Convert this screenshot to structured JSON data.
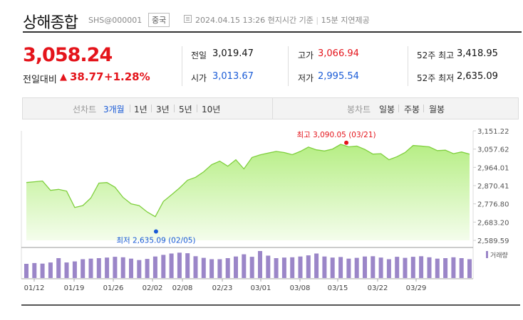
{
  "header": {
    "title": "상해종합",
    "code": "SHS@000001",
    "country": "중국",
    "datetime": "2024.04.15 13:26 현지시간 기준",
    "delay": "15분 지연제공"
  },
  "quote": {
    "price": "3,058.24",
    "change_label": "전일대비",
    "change_arrow": "▲",
    "change_value": "38.77",
    "change_pct": "+1.28%"
  },
  "stats": {
    "prev_label": "전일",
    "prev_value": "3,019.47",
    "open_label": "시가",
    "open_value": "3,013.67",
    "high_label": "고가",
    "high_value": "3,066.94",
    "low_label": "저가",
    "low_value": "2,995.54",
    "w52h_label": "52주 최고",
    "w52h_value": "3,418.95",
    "w52l_label": "52주 최저",
    "w52l_value": "2,635.09"
  },
  "toolbar": {
    "line_label": "선차트",
    "periods": [
      "3개월",
      "1년",
      "3년",
      "5년",
      "10년"
    ],
    "active_period": "3개월",
    "candle_label": "봉차트",
    "candles": [
      "일봉",
      "주봉",
      "월봉"
    ]
  },
  "chart_data": {
    "type": "area",
    "x_ticks": [
      "01/12",
      "01/19",
      "01/26",
      "02/02",
      "02/08",
      "02/23",
      "03/01",
      "03/08",
      "03/15",
      "03/22",
      "03/29"
    ],
    "y_ticks": [
      "3,151.22",
      "3,057.62",
      "2,964.01",
      "2,870.41",
      "2,776.80",
      "2,683.20",
      "2,589.59"
    ],
    "ylim": [
      2589.59,
      3151.22
    ],
    "values": [
      2886,
      2890,
      2894,
      2846,
      2851,
      2842,
      2758,
      2768,
      2807,
      2883,
      2886,
      2862,
      2810,
      2777,
      2768,
      2735,
      2711,
      2789,
      2823,
      2858,
      2898,
      2913,
      2941,
      2978,
      2996,
      2970,
      3003,
      2956,
      3015,
      3028,
      3037,
      3046,
      3040,
      3029,
      3046,
      3068,
      3054,
      3048,
      3058,
      3082,
      3069,
      3073,
      3056,
      3032,
      3034,
      3003,
      3019,
      3040,
      3076,
      3073,
      3069,
      3050,
      3052,
      3034,
      3043,
      3032
    ],
    "high_label": "최고 3,090.05 (03/21)",
    "low_label": "최저 2,635.09 (02/05)",
    "high_value": 3090.05,
    "low_value": 2635.09,
    "volume_label": "거래량",
    "volume": [
      52,
      55,
      53,
      57,
      73,
      57,
      61,
      69,
      71,
      73,
      75,
      78,
      76,
      71,
      66,
      70,
      79,
      85,
      90,
      93,
      91,
      80,
      74,
      69,
      69,
      73,
      79,
      87,
      78,
      99,
      82,
      73,
      75,
      76,
      79,
      83,
      90,
      79,
      75,
      77,
      71,
      74,
      79,
      80,
      75,
      69,
      78,
      74,
      78,
      80,
      76,
      71,
      73,
      76,
      73,
      69
    ]
  }
}
